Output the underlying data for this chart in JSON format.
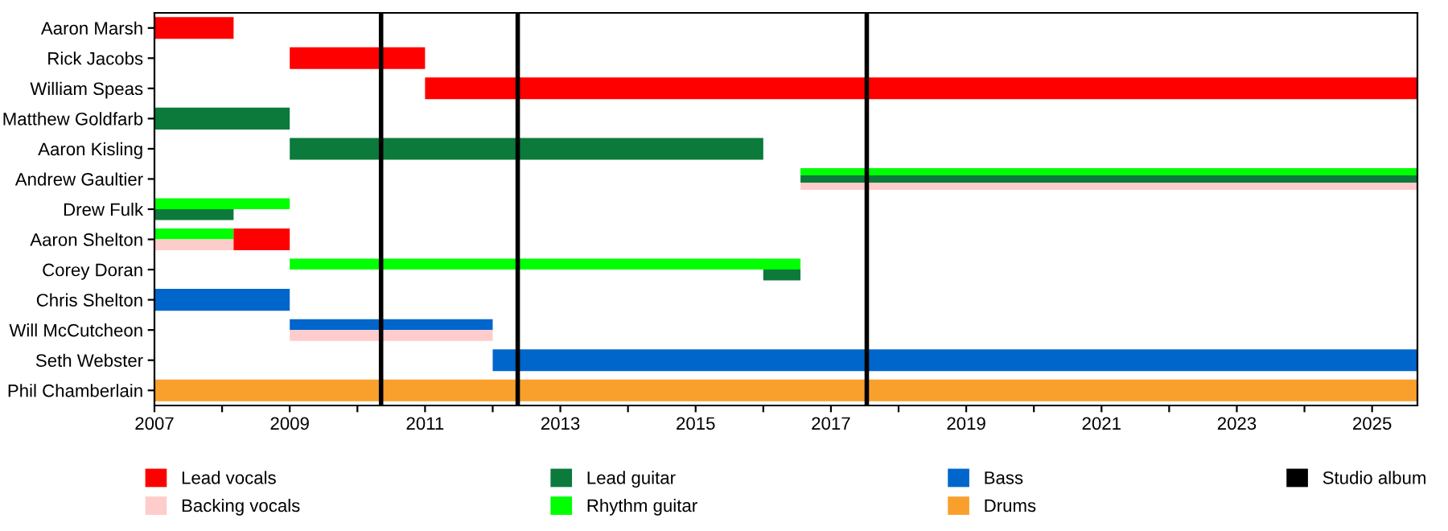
{
  "chart_data": {
    "type": "bar",
    "orientation": "horizontal",
    "categories": [
      "Aaron Marsh",
      "Rick Jacobs",
      "William Speas",
      "Matthew Goldfarb",
      "Aaron Kisling",
      "Andrew Gaultier",
      "Drew Fulk",
      "Aaron Shelton",
      "Corey Doran",
      "Chris Shelton",
      "Will McCutcheon",
      "Seth Webster",
      "Phil Chamberlain"
    ],
    "series": [
      {
        "name": "Lead vocals",
        "color": "#ff0000",
        "base": [
          2007,
          2009,
          2011,
          null,
          null,
          null,
          null,
          2008.17,
          null,
          null,
          null,
          null,
          null
        ],
        "values": [
          1.17,
          2,
          14.67,
          null,
          null,
          null,
          null,
          0.83,
          null,
          null,
          null,
          null,
          null
        ]
      },
      {
        "name": "Backing vocals",
        "color": "#ffcccc",
        "base": [
          null,
          null,
          null,
          null,
          null,
          2016.55,
          null,
          2007,
          null,
          null,
          2009,
          null,
          null
        ],
        "values": [
          null,
          null,
          null,
          null,
          null,
          9.12,
          null,
          1.17,
          null,
          null,
          3,
          null,
          null
        ]
      },
      {
        "name": "Lead guitar",
        "color": "#0b7a3b",
        "base": [
          null,
          null,
          null,
          2007,
          2009,
          2016.55,
          2007,
          null,
          2016,
          null,
          null,
          null,
          null
        ],
        "values": [
          null,
          null,
          null,
          2,
          7,
          9.12,
          1.17,
          null,
          0.55,
          null,
          null,
          null,
          null
        ]
      },
      {
        "name": "Rhythm guitar",
        "color": "#00ff00",
        "base": [
          null,
          null,
          null,
          null,
          null,
          2016.55,
          2007,
          2007,
          2009,
          null,
          null,
          null,
          null
        ],
        "values": [
          null,
          null,
          null,
          null,
          null,
          9.12,
          2,
          1.17,
          7.55,
          null,
          null,
          null,
          null
        ]
      },
      {
        "name": "Bass",
        "color": "#0066cc",
        "base": [
          null,
          null,
          null,
          null,
          null,
          null,
          null,
          null,
          null,
          2007,
          2009,
          2012,
          null
        ],
        "values": [
          null,
          null,
          null,
          null,
          null,
          null,
          null,
          null,
          null,
          2,
          3,
          13.67,
          null
        ]
      },
      {
        "name": "Drums",
        "color": "#f9a02c",
        "base": [
          null,
          null,
          null,
          null,
          null,
          null,
          null,
          null,
          null,
          null,
          null,
          null,
          2007
        ],
        "values": [
          null,
          null,
          null,
          null,
          null,
          null,
          null,
          null,
          null,
          null,
          null,
          null,
          18.67
        ]
      }
    ],
    "ref_lines": [
      {
        "axis": "x",
        "value": 2010.35,
        "label": "Studio album",
        "color": "#000000"
      },
      {
        "axis": "x",
        "value": 2012.37,
        "color": "#000000"
      },
      {
        "axis": "x",
        "value": 2017.53,
        "color": "#000000"
      }
    ],
    "xlim": [
      2007,
      2025.67
    ],
    "xticks": [
      2007,
      {
        "value": 2008,
        "label": null
      },
      2009,
      {
        "value": 2010,
        "label": null
      },
      2011,
      {
        "value": 2012,
        "label": null
      },
      2013,
      {
        "value": 2014,
        "label": null
      },
      2015,
      {
        "value": 2016,
        "label": null
      },
      2017,
      {
        "value": 2018,
        "label": null
      },
      2019,
      {
        "value": 2020,
        "label": null
      },
      2021,
      {
        "value": 2022,
        "label": null
      },
      2023,
      {
        "value": 2024,
        "label": null
      },
      2025
    ],
    "grid": false,
    "legend": "bottom"
  }
}
